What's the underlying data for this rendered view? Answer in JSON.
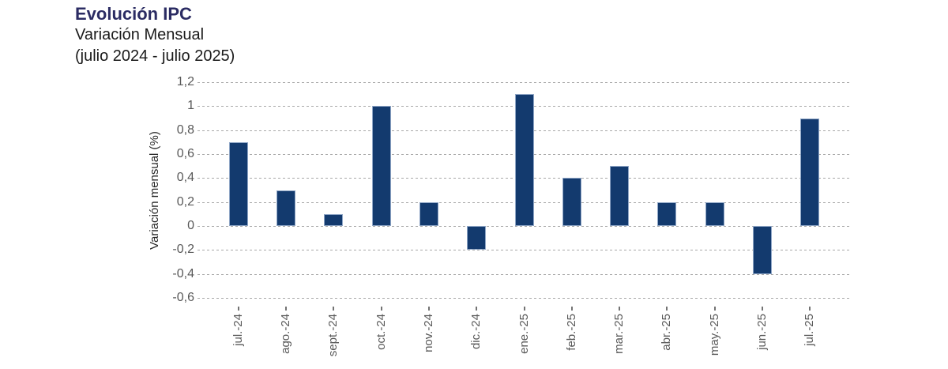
{
  "header": {
    "title": "Evolución IPC",
    "subtitle": "Variación Mensual",
    "period": "(julio 2024 - julio 2025)"
  },
  "chart_data": {
    "type": "bar",
    "title": "Evolución IPC",
    "subtitle": "Variación Mensual (julio 2024 - julio 2025)",
    "categories": [
      "jul.-24",
      "ago.-24",
      "sept.-24",
      "oct.-24",
      "nov.-24",
      "dic.-24",
      "ene.-25",
      "feb.-25",
      "mar.-25",
      "abr.-25",
      "may.-25",
      "jun.-25",
      "jul.-25"
    ],
    "values": [
      0.7,
      0.3,
      0.1,
      1.0,
      0.2,
      -0.2,
      1.1,
      0.4,
      0.5,
      0.2,
      0.2,
      -0.4,
      0.9
    ],
    "xlabel": "",
    "ylabel": "Variación mensual (%)",
    "ylim": [
      -0.6,
      1.2
    ],
    "yticks": [
      {
        "value": 1.2,
        "label": "1,2"
      },
      {
        "value": 1.0,
        "label": "1"
      },
      {
        "value": 0.8,
        "label": "0,8"
      },
      {
        "value": 0.6,
        "label": "0,6"
      },
      {
        "value": 0.4,
        "label": "0,4"
      },
      {
        "value": 0.2,
        "label": "0,2"
      },
      {
        "value": 0.0,
        "label": "0"
      },
      {
        "value": -0.2,
        "label": "-0,2"
      },
      {
        "value": -0.4,
        "label": "-0,4"
      },
      {
        "value": -0.6,
        "label": "-0,6"
      }
    ],
    "grid": "horizontal-dashed",
    "legend": "none",
    "colors": {
      "bar_fill": "#133a6e",
      "bar_edge": "#8fa6c6",
      "gridline": "#a8a8a8",
      "tick_text": "#595959",
      "title_text": "#2b2c63",
      "subtitle_text": "#1a1a1a",
      "axis_title_text": "#262626"
    }
  }
}
